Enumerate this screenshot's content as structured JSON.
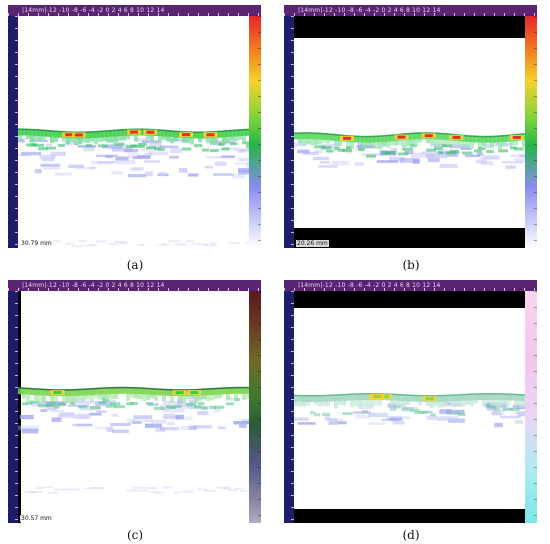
{
  "figure": {
    "panels": [
      {
        "id": "a",
        "caption": "(a)",
        "scale_label": "|14mm|-12",
        "tick_labels": [
          "-10",
          "-8",
          "-6",
          "-4",
          "-2",
          "0",
          "2",
          "4",
          "6",
          "8",
          "10",
          "12",
          "14"
        ],
        "readout": "30.79 mm",
        "colorbar": "rainbow"
      },
      {
        "id": "b",
        "caption": "(b)",
        "scale_label": "|14mm|-12",
        "tick_labels": [
          "-10",
          "-8",
          "-6",
          "-4",
          "-2",
          "0",
          "2",
          "4",
          "6",
          "8",
          "10",
          "12",
          "14"
        ],
        "readout": "20.26 mm",
        "colorbar": "rainbow"
      },
      {
        "id": "c",
        "caption": "(c)",
        "scale_label": "|14mm|-12",
        "tick_labels": [
          "-10",
          "-8",
          "-6",
          "-4",
          "-2",
          "0",
          "2",
          "4",
          "6",
          "8",
          "10",
          "12",
          "14"
        ],
        "readout": "30.57 mm",
        "colorbar": "dark"
      },
      {
        "id": "d",
        "caption": "(d)",
        "scale_label": "|14mm|-12",
        "tick_labels": [
          "-10",
          "-8",
          "-6",
          "-4",
          "-2",
          "0",
          "2",
          "4",
          "6",
          "8",
          "10",
          "12",
          "14"
        ],
        "readout": "",
        "colorbar": "pale"
      }
    ]
  },
  "colors": {
    "top_ruler": "#5a2472",
    "left_ruler": "#1d1f6a",
    "signal_strong": "#e3262b",
    "signal_mid": "#2bcf3a",
    "signal_weak": "#b8bff2"
  }
}
